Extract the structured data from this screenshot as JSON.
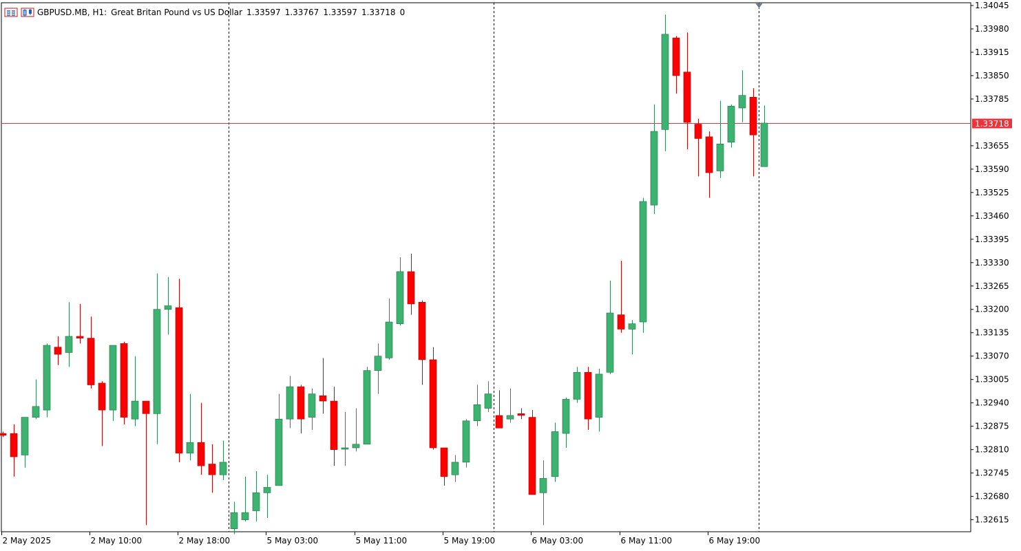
{
  "header": {
    "symbol": "GBPUSD.MB, H1:",
    "description": "Great Britan Pound vs US Dollar",
    "open": "1.33597",
    "high": "1.33767",
    "low": "1.33597",
    "close": "1.33718",
    "volume": "0",
    "icons": [
      "chart-table-icon",
      "chart-type-icon"
    ]
  },
  "colors": {
    "bull": "#3cb371",
    "bear": "#ff0000",
    "wick_bull": "#2e8b57",
    "wick_bear": "#c80000",
    "price_line": "#e8353d",
    "price_label_bg": "#e8353d",
    "axis": "#000000",
    "background": "#ffffff"
  },
  "chart_data": {
    "type": "candlestick",
    "symbol": "GBPUSD.MB",
    "timeframe": "H1",
    "current_price": 1.33718,
    "current_price_label": "1.33718",
    "ylim": [
      1.32574,
      1.34045
    ],
    "y_tick_labels": [
      "1.34045",
      "1.33980",
      "1.33915",
      "1.33850",
      "1.33785",
      "1.33655",
      "1.33590",
      "1.33525",
      "1.33460",
      "1.33395",
      "1.33330",
      "1.33265",
      "1.33200",
      "1.33135",
      "1.33070",
      "1.33005",
      "1.32940",
      "1.32875",
      "1.32810",
      "1.32745",
      "1.32680",
      "1.32615"
    ],
    "x_tick_labels": [
      {
        "bar": 0,
        "label": "2 May 2025"
      },
      {
        "bar": 8,
        "label": "2 May 10:00"
      },
      {
        "bar": 16,
        "label": "2 May 18:00"
      },
      {
        "bar": 24,
        "label": "5 May 03:00"
      },
      {
        "bar": 32,
        "label": "5 May 11:00"
      },
      {
        "bar": 40,
        "label": "5 May 19:00"
      },
      {
        "bar": 48,
        "label": "6 May 03:00"
      },
      {
        "bar": 56,
        "label": "6 May 11:00"
      },
      {
        "bar": 64,
        "label": "6 May 19:00"
      }
    ],
    "day_separators_after_bar": [
      20.5,
      44.5,
      68.5
    ],
    "candles": [
      {
        "o": 1.32855,
        "h": 1.3286,
        "l": 1.32845,
        "c": 1.3285
      },
      {
        "o": 1.32855,
        "h": 1.3288,
        "l": 1.32735,
        "c": 1.3279
      },
      {
        "o": 1.32795,
        "h": 1.329,
        "l": 1.3276,
        "c": 1.329
      },
      {
        "o": 1.329,
        "h": 1.33005,
        "l": 1.32895,
        "c": 1.3293
      },
      {
        "o": 1.3292,
        "h": 1.33105,
        "l": 1.329,
        "c": 1.331
      },
      {
        "o": 1.33095,
        "h": 1.33125,
        "l": 1.33045,
        "c": 1.33075
      },
      {
        "o": 1.3308,
        "h": 1.3322,
        "l": 1.3304,
        "c": 1.33125
      },
      {
        "o": 1.33125,
        "h": 1.33215,
        "l": 1.33105,
        "c": 1.3312
      },
      {
        "o": 1.3312,
        "h": 1.3318,
        "l": 1.3298,
        "c": 1.3299
      },
      {
        "o": 1.32995,
        "h": 1.33,
        "l": 1.3282,
        "c": 1.3292
      },
      {
        "o": 1.3292,
        "h": 1.331,
        "l": 1.3289,
        "c": 1.331
      },
      {
        "o": 1.33105,
        "h": 1.3311,
        "l": 1.3288,
        "c": 1.329
      },
      {
        "o": 1.32895,
        "h": 1.3307,
        "l": 1.32875,
        "c": 1.32945
      },
      {
        "o": 1.32945,
        "h": 1.3294,
        "l": 1.326,
        "c": 1.3291
      },
      {
        "o": 1.3291,
        "h": 1.333,
        "l": 1.32825,
        "c": 1.332
      },
      {
        "o": 1.332,
        "h": 1.3329,
        "l": 1.3313,
        "c": 1.3321
      },
      {
        "o": 1.33205,
        "h": 1.33285,
        "l": 1.32775,
        "c": 1.328
      },
      {
        "o": 1.328,
        "h": 1.32965,
        "l": 1.3278,
        "c": 1.3283
      },
      {
        "o": 1.3283,
        "h": 1.3294,
        "l": 1.3274,
        "c": 1.32765
      },
      {
        "o": 1.3277,
        "h": 1.32825,
        "l": 1.3269,
        "c": 1.3274
      },
      {
        "o": 1.3274,
        "h": 1.32835,
        "l": 1.32725,
        "c": 1.32775
      },
      {
        "o": 1.3259,
        "h": 1.32665,
        "l": 1.32575,
        "c": 1.32635
      },
      {
        "o": 1.32615,
        "h": 1.32735,
        "l": 1.3261,
        "c": 1.32635
      },
      {
        "o": 1.3264,
        "h": 1.3275,
        "l": 1.3261,
        "c": 1.3269
      },
      {
        "o": 1.3269,
        "h": 1.3274,
        "l": 1.3262,
        "c": 1.32705
      },
      {
        "o": 1.3271,
        "h": 1.32965,
        "l": 1.3271,
        "c": 1.32895
      },
      {
        "o": 1.32895,
        "h": 1.33015,
        "l": 1.3287,
        "c": 1.32985
      },
      {
        "o": 1.32985,
        "h": 1.3299,
        "l": 1.32855,
        "c": 1.32895
      },
      {
        "o": 1.329,
        "h": 1.3298,
        "l": 1.32865,
        "c": 1.32965
      },
      {
        "o": 1.3296,
        "h": 1.33065,
        "l": 1.3291,
        "c": 1.32945
      },
      {
        "o": 1.32945,
        "h": 1.32985,
        "l": 1.32765,
        "c": 1.3281
      },
      {
        "o": 1.32815,
        "h": 1.32915,
        "l": 1.32765,
        "c": 1.32815
      },
      {
        "o": 1.32815,
        "h": 1.32925,
        "l": 1.32805,
        "c": 1.32825
      },
      {
        "o": 1.32825,
        "h": 1.3304,
        "l": 1.32825,
        "c": 1.3303
      },
      {
        "o": 1.3303,
        "h": 1.33105,
        "l": 1.32965,
        "c": 1.3307
      },
      {
        "o": 1.33065,
        "h": 1.3323,
        "l": 1.3306,
        "c": 1.33165
      },
      {
        "o": 1.3316,
        "h": 1.33345,
        "l": 1.33155,
        "c": 1.33305
      },
      {
        "o": 1.33305,
        "h": 1.33355,
        "l": 1.33185,
        "c": 1.33215
      },
      {
        "o": 1.3322,
        "h": 1.33225,
        "l": 1.3299,
        "c": 1.3306
      },
      {
        "o": 1.3306,
        "h": 1.33095,
        "l": 1.3281,
        "c": 1.32815
      },
      {
        "o": 1.32815,
        "h": 1.32815,
        "l": 1.3271,
        "c": 1.32735
      },
      {
        "o": 1.3274,
        "h": 1.32795,
        "l": 1.3272,
        "c": 1.32775
      },
      {
        "o": 1.32775,
        "h": 1.32895,
        "l": 1.3276,
        "c": 1.3289
      },
      {
        "o": 1.3289,
        "h": 1.3299,
        "l": 1.32875,
        "c": 1.32935
      },
      {
        "o": 1.32925,
        "h": 1.33,
        "l": 1.32915,
        "c": 1.32965
      },
      {
        "o": 1.32905,
        "h": 1.32975,
        "l": 1.32875,
        "c": 1.3287
      },
      {
        "o": 1.32895,
        "h": 1.3298,
        "l": 1.32885,
        "c": 1.32905
      },
      {
        "o": 1.3291,
        "h": 1.32925,
        "l": 1.32895,
        "c": 1.32905
      },
      {
        "o": 1.329,
        "h": 1.3292,
        "l": 1.3269,
        "c": 1.32685
      },
      {
        "o": 1.3269,
        "h": 1.3278,
        "l": 1.326,
        "c": 1.3273
      },
      {
        "o": 1.32735,
        "h": 1.32885,
        "l": 1.3272,
        "c": 1.3286
      },
      {
        "o": 1.32855,
        "h": 1.32955,
        "l": 1.32815,
        "c": 1.3295
      },
      {
        "o": 1.3295,
        "h": 1.3304,
        "l": 1.3294,
        "c": 1.33025
      },
      {
        "o": 1.33025,
        "h": 1.3304,
        "l": 1.32865,
        "c": 1.32895
      },
      {
        "o": 1.329,
        "h": 1.33035,
        "l": 1.3286,
        "c": 1.3302
      },
      {
        "o": 1.33025,
        "h": 1.3328,
        "l": 1.3302,
        "c": 1.3319
      },
      {
        "o": 1.33185,
        "h": 1.33335,
        "l": 1.33135,
        "c": 1.33145
      },
      {
        "o": 1.33145,
        "h": 1.3317,
        "l": 1.33075,
        "c": 1.3316
      },
      {
        "o": 1.33165,
        "h": 1.3351,
        "l": 1.33135,
        "c": 1.335
      },
      {
        "o": 1.3349,
        "h": 1.3377,
        "l": 1.33465,
        "c": 1.33695
      },
      {
        "o": 1.337,
        "h": 1.3402,
        "l": 1.3364,
        "c": 1.33965
      },
      {
        "o": 1.33955,
        "h": 1.3396,
        "l": 1.338,
        "c": 1.3385
      },
      {
        "o": 1.3386,
        "h": 1.3397,
        "l": 1.33645,
        "c": 1.3372
      },
      {
        "o": 1.33715,
        "h": 1.3373,
        "l": 1.3357,
        "c": 1.33675
      },
      {
        "o": 1.3368,
        "h": 1.33695,
        "l": 1.3351,
        "c": 1.3358
      },
      {
        "o": 1.33585,
        "h": 1.3378,
        "l": 1.33565,
        "c": 1.3366
      },
      {
        "o": 1.33665,
        "h": 1.3377,
        "l": 1.3365,
        "c": 1.33765
      },
      {
        "o": 1.3376,
        "h": 1.33865,
        "l": 1.3372,
        "c": 1.33795
      },
      {
        "o": 1.3379,
        "h": 1.33815,
        "l": 1.3357,
        "c": 1.33685
      },
      {
        "o": 1.33597,
        "h": 1.33767,
        "l": 1.33597,
        "c": 1.33718
      }
    ]
  }
}
